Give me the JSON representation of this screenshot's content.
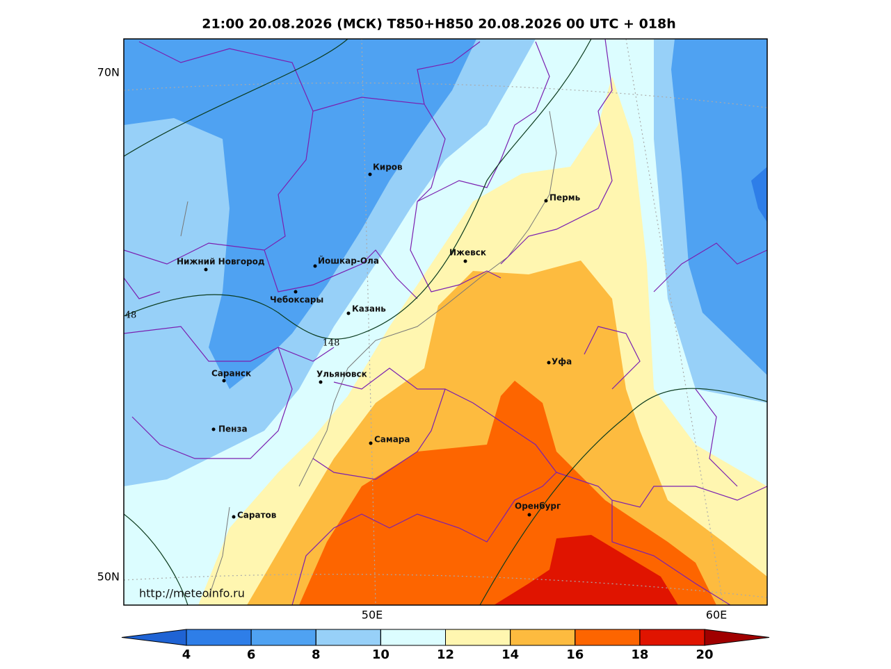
{
  "title": "21:00 20.08.2026 (МСК) T850+H850 20.08.2026 00 UTC + 018h",
  "map": {
    "lat_labels": [
      "70N",
      "50N"
    ],
    "lon_labels": [
      "50E",
      "60E"
    ],
    "cities": [
      "Киров",
      "Пермь",
      "Ижевск",
      "Нижний Новгород",
      "Йошкар-Ола",
      "Чебоксары",
      "Казань",
      "Уфа",
      "Саранск",
      "Ульяновск",
      "Пенза",
      "Самара",
      "Оренбург",
      "Саратов"
    ],
    "contour_labels": [
      "148",
      "48"
    ],
    "credit": "http://meteoinfo.ru"
  },
  "colorbar": {
    "ticks": [
      4,
      6,
      8,
      10,
      12,
      14,
      16,
      18,
      20
    ],
    "colors": [
      "#1f63d4",
      "#2e7ee8",
      "#4fa2f2",
      "#97d0f8",
      "#dcfdff",
      "#fff6b0",
      "#fdbb3f",
      "#fd6500",
      "#e01400",
      "#a00000"
    ]
  }
}
